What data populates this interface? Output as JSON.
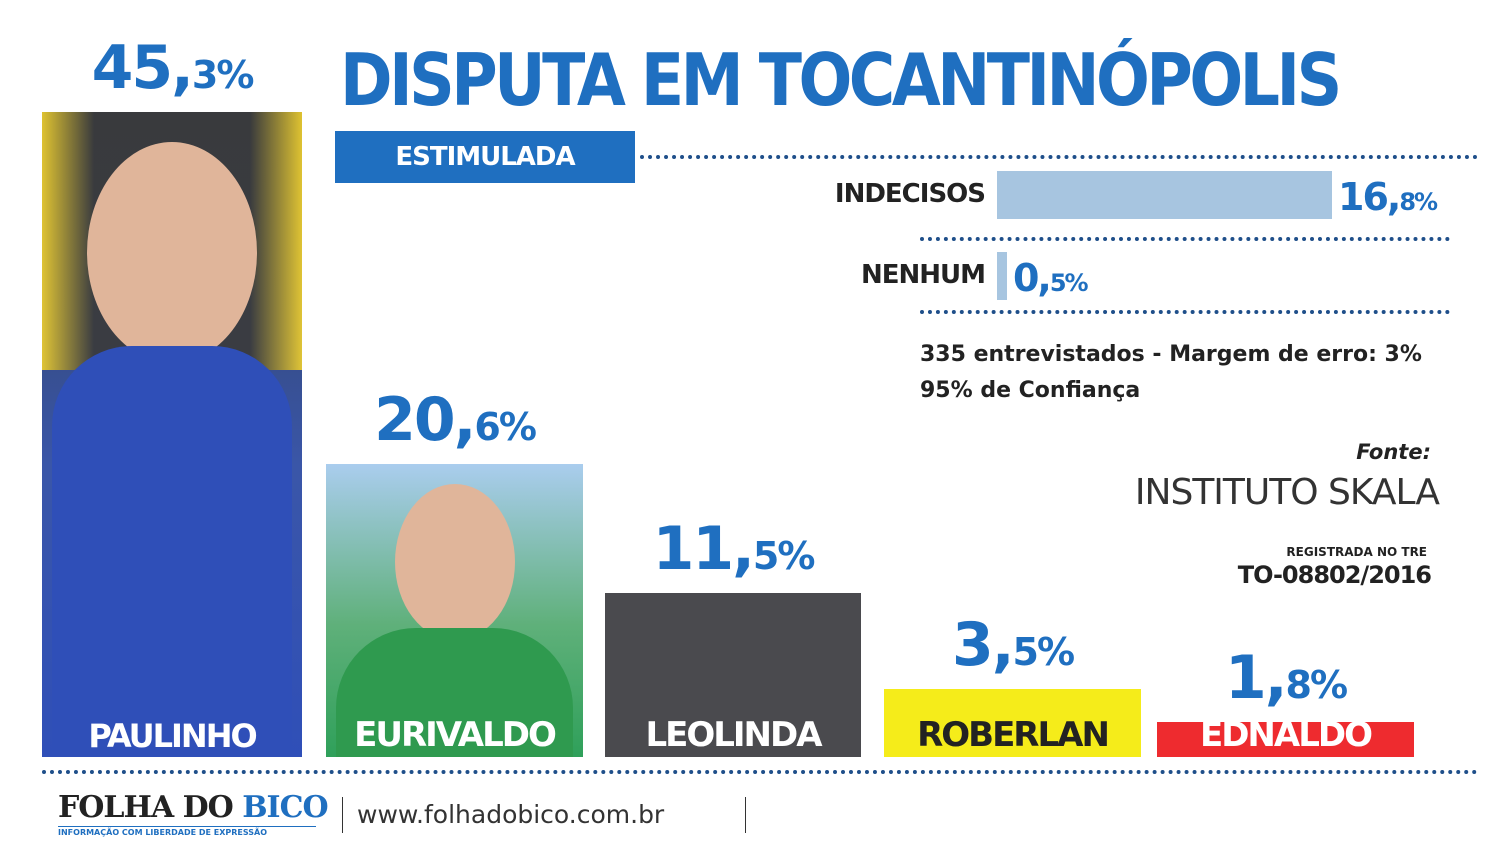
{
  "chart_data": {
    "type": "bar",
    "title": "DISPUTA EM TOCANTINÓPOLIS",
    "subtitle": "ESTIMULADA",
    "categories": [
      "PAULINHO",
      "EURIVALDO",
      "LEOLINDA",
      "ROBERLAN",
      "EDNALDO"
    ],
    "values": [
      45.3,
      20.6,
      11.5,
      3.5,
      1.8
    ],
    "labels": [
      {
        "int": "45,",
        "dec": "3%"
      },
      {
        "int": "20,",
        "dec": "6%"
      },
      {
        "int": "11,",
        "dec": "5%"
      },
      {
        "int": "3,",
        "dec": "5%"
      },
      {
        "int": "1,",
        "dec": "8%"
      }
    ],
    "colors": [
      "#2f55b8",
      "#2fa05a",
      "#4a4a4e",
      "#f5ec1a",
      "#ee2b2f"
    ],
    "name_colors": [
      "#ffffff",
      "#ffffff",
      "#ffffff",
      "#222222",
      "#ffffff"
    ],
    "extra": [
      {
        "name": "INDECISOS",
        "value": 16.8,
        "int": "16,",
        "dec": "8%"
      },
      {
        "name": "NENHUM",
        "value": 0.5,
        "int": "0,",
        "dec": "5%"
      }
    ],
    "extra_color": "#a7c5e0"
  },
  "survey": {
    "line1": "335 entrevistados - Margem de erro: 3%",
    "line2": "95% de Confiança"
  },
  "source": {
    "label": "Fonte:",
    "name": "INSTITUTO SKALA",
    "registered": "REGISTRADA NO TRE",
    "code": "TO-08802/2016"
  },
  "footer": {
    "logo_a": "FOLHA DO ",
    "logo_b": "BICO",
    "tagline": "INFORMAÇÃO COM LIBERDADE DE EXPRESSÃO",
    "url": "www.folhadobico.com.br"
  }
}
